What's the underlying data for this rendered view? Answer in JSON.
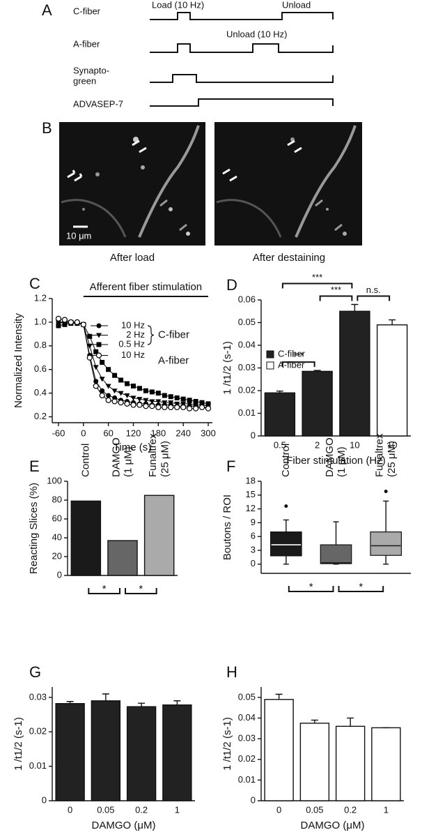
{
  "panels": {
    "A": {
      "label": "A",
      "rows": [
        "C-fiber",
        "A-fiber",
        "Synapto-\ngreen",
        "ADVASEP-7"
      ],
      "annotations": [
        "Load (10 Hz)",
        "Unload",
        "Unload (10 Hz)"
      ]
    },
    "B": {
      "label": "B",
      "scale_bar": "10 μm",
      "captions": [
        "After load",
        "After destaining"
      ]
    }
  },
  "chart_data": [
    {
      "type": "line",
      "label": "C",
      "x_label": "Time (s)",
      "y_label": "Normalized Intensity",
      "x": [
        -60,
        -45,
        -30,
        -15,
        0,
        15,
        30,
        45,
        60,
        75,
        90,
        105,
        120,
        135,
        150,
        165,
        180,
        195,
        210,
        225,
        240,
        255,
        270,
        285,
        300
      ],
      "xlim": [
        -75,
        310
      ],
      "xticks": [
        -60,
        0,
        60,
        120,
        180,
        240,
        300
      ],
      "ylim": [
        0.15,
        1.2
      ],
      "yticks": [
        0.2,
        0.4,
        0.6,
        0.8,
        {
          "value": 1,
          "label": "1.0"
        },
        1.2
      ],
      "annotation": {
        "text": "Afferent fiber stimulation",
        "x_range": [
          0,
          300
        ]
      },
      "series": [
        {
          "name": "10 Hz",
          "color": "#000000",
          "marker": "circle",
          "values": [
            1.0,
            1.0,
            1.0,
            0.99,
            0.98,
            0.72,
            0.5,
            0.42,
            0.38,
            0.36,
            0.34,
            0.33,
            0.32,
            0.31,
            0.31,
            0.3,
            0.3,
            0.3,
            0.3,
            0.29,
            0.29,
            0.29,
            0.29,
            0.28,
            0.28
          ]
        },
        {
          "name": "2 Hz",
          "color": "#000000",
          "marker": "triangle-down",
          "values": [
            1.0,
            0.99,
            1.0,
            0.99,
            0.98,
            0.8,
            0.62,
            0.52,
            0.46,
            0.42,
            0.4,
            0.38,
            0.36,
            0.35,
            0.34,
            0.33,
            0.33,
            0.32,
            0.32,
            0.31,
            0.31,
            0.31,
            0.3,
            0.3,
            0.29
          ]
        },
        {
          "name": "0.5 Hz",
          "color": "#000000",
          "marker": "square",
          "values": [
            0.97,
            0.98,
            0.99,
            0.99,
            0.98,
            0.88,
            0.75,
            0.66,
            0.6,
            0.55,
            0.51,
            0.48,
            0.46,
            0.44,
            0.42,
            0.41,
            0.4,
            0.38,
            0.37,
            0.36,
            0.35,
            0.34,
            0.33,
            0.32,
            0.31
          ]
        },
        {
          "name": "10 Hz",
          "color": "#000000",
          "marker": "circle-open",
          "values": [
            1.03,
            1.02,
            1.0,
            1.0,
            0.98,
            0.7,
            0.46,
            0.38,
            0.34,
            0.33,
            0.32,
            0.31,
            0.3,
            0.3,
            0.29,
            0.29,
            0.28,
            0.28,
            0.28,
            0.28,
            0.28,
            0.27,
            0.27,
            0.28,
            0.27
          ]
        }
      ],
      "legend_groups": [
        {
          "label": "C-fiber",
          "series": [
            0,
            1,
            2
          ]
        },
        {
          "label": "A-fiber",
          "series": [
            3
          ]
        }
      ]
    },
    {
      "type": "bar",
      "label": "D",
      "x_label": "Fiber stimulation (Hz)",
      "y_label": "1 /t1/2 (s-1)",
      "categories": [
        "0.5",
        "2",
        "10",
        "10"
      ],
      "ylim": [
        0,
        0.06
      ],
      "yticks": [
        0,
        0.01,
        0.02,
        0.03,
        0.04,
        0.05,
        0.06
      ],
      "series": [
        {
          "name": "C-fiber",
          "color": "#222222",
          "values": [
            0.019,
            0.0285,
            0.055,
            null
          ],
          "errors": [
            0.0008,
            0.0004,
            0.003,
            null
          ]
        },
        {
          "name": "A-fiber",
          "color": "#ffffff",
          "values": [
            null,
            null,
            null,
            0.049
          ],
          "errors": [
            null,
            null,
            null,
            0.0022
          ]
        }
      ],
      "legend": "center left",
      "significance": [
        {
          "between": [
            0,
            1
          ],
          "label": "***"
        },
        {
          "between": [
            1,
            2
          ],
          "label": "***"
        },
        {
          "between": [
            0,
            2
          ],
          "label": "***"
        },
        {
          "between": [
            2,
            3
          ],
          "label": "n.s."
        }
      ],
      "significance_position": "above"
    },
    {
      "type": "bar",
      "label": "E",
      "y_label": "Reacting Slices (%)",
      "categories": [
        "Control",
        "DAMGO\n(1 μM)",
        "Funaltrex\n(25 μM)"
      ],
      "category_label_position": "top",
      "ylim": [
        0,
        100
      ],
      "yticks": [
        0,
        20,
        40,
        60,
        80,
        100
      ],
      "values": [
        79,
        37,
        85
      ],
      "colors": [
        "#1a1a1a",
        "#666666",
        "#aaaaaa"
      ],
      "significance": [
        {
          "between": [
            0,
            1
          ],
          "label": "*"
        },
        {
          "between": [
            1,
            2
          ],
          "label": "*"
        }
      ],
      "significance_position": "below"
    },
    {
      "type": "box",
      "label": "F",
      "y_label": "Boutons / ROI",
      "categories": [
        "Control",
        "DAMGO\n(1 μM)",
        "Funaltrex\n(25 μM)"
      ],
      "category_label_position": "top",
      "ylim": [
        -2,
        18
      ],
      "yticks": [
        0,
        3,
        6,
        9,
        12,
        15,
        18
      ],
      "boxes": [
        {
          "low": 0,
          "q1": 1.8,
          "median": 4.2,
          "q3": 7,
          "high": 9.6,
          "outliers": [
            12.6
          ]
        },
        {
          "low": 0,
          "q1": 0.1,
          "median": 0.3,
          "q3": 4.2,
          "high": 9.2,
          "outliers": []
        },
        {
          "low": 0,
          "q1": 1.9,
          "median": 4,
          "q3": 7,
          "high": 13.7,
          "outliers": [
            15.8
          ]
        }
      ],
      "colors": [
        "#1a1a1a",
        "#666666",
        "#aaaaaa"
      ],
      "median_colors": [
        "#ffffff",
        "#222222",
        "#222222"
      ],
      "significance": [
        {
          "between": [
            0,
            1
          ],
          "label": "*"
        },
        {
          "between": [
            1,
            2
          ],
          "label": "*"
        }
      ],
      "significance_position": "below"
    },
    {
      "type": "bar",
      "label": "G",
      "x_label": "DAMGO (μM)",
      "y_label": "1 /t1/2 (s-1)",
      "categories": [
        "0",
        "0.05",
        "0.2",
        "1"
      ],
      "ylim": [
        0,
        0.033
      ],
      "yticks": [
        0,
        0.01,
        0.02,
        0.03
      ],
      "values": [
        0.0282,
        0.029,
        0.0273,
        0.0278
      ],
      "errors": [
        0.0006,
        0.002,
        0.001,
        0.0012
      ],
      "color": "#222222"
    },
    {
      "type": "bar",
      "label": "H",
      "x_label": "DAMGO (μM)",
      "y_label": "1 /t1/2 (s-1)",
      "categories": [
        "0",
        "0.05",
        "0.2",
        "1"
      ],
      "ylim": [
        0,
        0.055
      ],
      "yticks": [
        0,
        0.01,
        0.02,
        0.03,
        0.04,
        0.05
      ],
      "values": [
        0.049,
        0.0375,
        0.036,
        0.0353
      ],
      "errors": [
        0.0025,
        0.0015,
        0.004,
        0
      ],
      "color": "#ffffff"
    }
  ]
}
